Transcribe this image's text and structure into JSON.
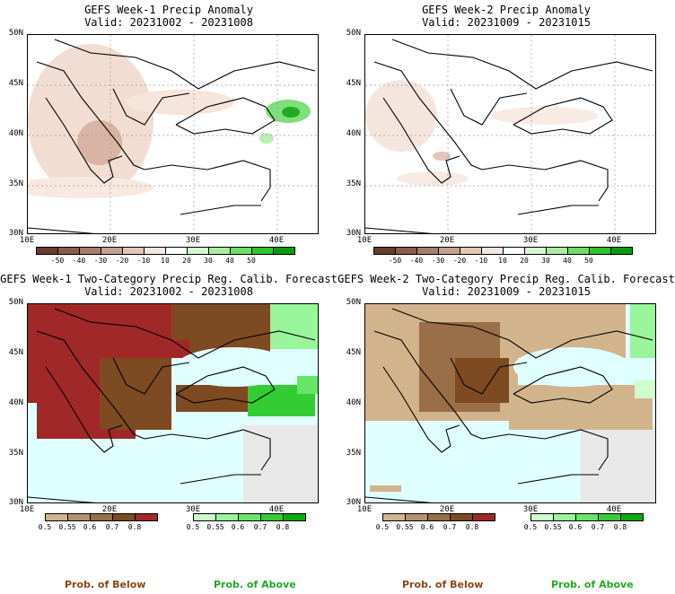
{
  "panels": [
    {
      "title": "GEFS Week-1 Precip Anomaly",
      "valid": "Valid: 20231002 - 20231008",
      "lat_labels": [
        "50N",
        "45N",
        "40N",
        "35N",
        "30N"
      ],
      "lon_labels": [
        "10E",
        "20E",
        "30E",
        "40E"
      ]
    },
    {
      "title": "GEFS Week-2 Precip Anomaly",
      "valid": "Valid: 20231009 - 20231015",
      "lat_labels": [
        "50N",
        "45N",
        "40N",
        "35N",
        "30N"
      ],
      "lon_labels": [
        "10E",
        "20E",
        "30E",
        "40E"
      ]
    },
    {
      "title": "GEFS Week-1 Two-Category Precip Reg. Calib. Forecast",
      "valid": "Valid: 20231002 - 20231008",
      "lat_labels": [
        "50N",
        "45N",
        "40N",
        "35N",
        "30N"
      ],
      "lon_labels": [
        "10E",
        "20E",
        "30E",
        "40E"
      ]
    },
    {
      "title": "GEFS Week-2 Two-Category Precip Reg. Calib. Forecast",
      "valid": "Valid: 20231009 - 20231015",
      "lat_labels": [
        "50N",
        "45N",
        "40N",
        "35N",
        "30N"
      ],
      "lon_labels": [
        "10E",
        "20E",
        "30E",
        "40E"
      ]
    }
  ],
  "anomaly_colorbar": {
    "labels": [
      "-50",
      "-40",
      "-30",
      "-20",
      "-10",
      "10",
      "20",
      "30",
      "40",
      "50"
    ],
    "colors": [
      "#6b3a2a",
      "#8c5a4a",
      "#a87c6c",
      "#c6a090",
      "#e2c8ba",
      "#f3e6de",
      "#ffffff",
      "#d6f5d0",
      "#a8eca0",
      "#6ede64",
      "#2ec42a",
      "#0a9a0a"
    ]
  },
  "below_colorbar": {
    "labels": [
      "0.5",
      "0.55",
      "0.6",
      "0.7",
      "0.8"
    ],
    "colors": [
      "#d2b48c",
      "#b8926a",
      "#9a6e46",
      "#7d4a22",
      "#a02828"
    ]
  },
  "above_colorbar": {
    "labels": [
      "0.5",
      "0.55",
      "0.6",
      "0.7",
      "0.8"
    ],
    "colors": [
      "#ccffcc",
      "#99f599",
      "#66e666",
      "#33cc33",
      "#11a811"
    ]
  },
  "captions": {
    "below": "Prob. of Below",
    "above": "Prob. of Above"
  },
  "legend_colors": {
    "below_caption": "#8b4513",
    "above_caption": "#22aa22",
    "sea": "#e0ffff",
    "no_data_land": "#e8e8e8"
  }
}
